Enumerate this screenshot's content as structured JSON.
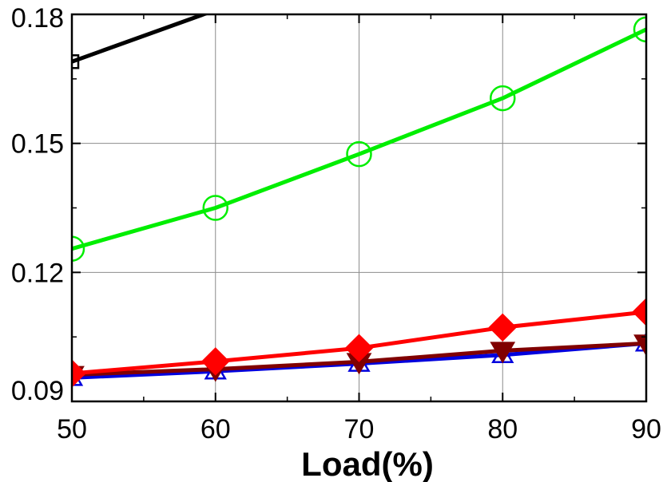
{
  "chart_data": {
    "type": "line",
    "title": "",
    "xlabel": "Load(%)",
    "ylabel": "",
    "x": [
      50,
      60,
      70,
      80,
      90
    ],
    "xlim": [
      50,
      90
    ],
    "ylim": [
      0.09,
      0.18
    ],
    "x_ticks": [
      50,
      60,
      70,
      80,
      90
    ],
    "x_tick_labels": [
      "50",
      "60",
      "70",
      "80",
      "90"
    ],
    "y_ticks": [
      0.09,
      0.12,
      0.15,
      0.18
    ],
    "y_tick_labels": [
      "0.09",
      "0.12",
      "0.15",
      "0.18"
    ],
    "grid": true,
    "legend": "none",
    "series": [
      {
        "color": "#000000",
        "marker": "square",
        "values": [
          0.169,
          0.181,
          null,
          null,
          null
        ],
        "note_only_visible_portion": true
      },
      {
        "color": "#00ee00",
        "marker": "circle",
        "values": [
          0.1255,
          0.135,
          0.1475,
          0.1605,
          0.1765
        ]
      },
      {
        "color": "#ff0000",
        "marker": "diamond",
        "values": [
          0.0965,
          0.0993,
          0.1024,
          0.1072,
          0.1108
        ]
      },
      {
        "color": "#800000",
        "marker": "triangle-down",
        "values": [
          0.0962,
          0.0975,
          0.0992,
          0.1018,
          0.1035
        ]
      },
      {
        "color": "#0000dd",
        "marker": "triangle-up",
        "values": [
          0.0955,
          0.097,
          0.0988,
          0.1008,
          0.1035
        ]
      }
    ]
  }
}
